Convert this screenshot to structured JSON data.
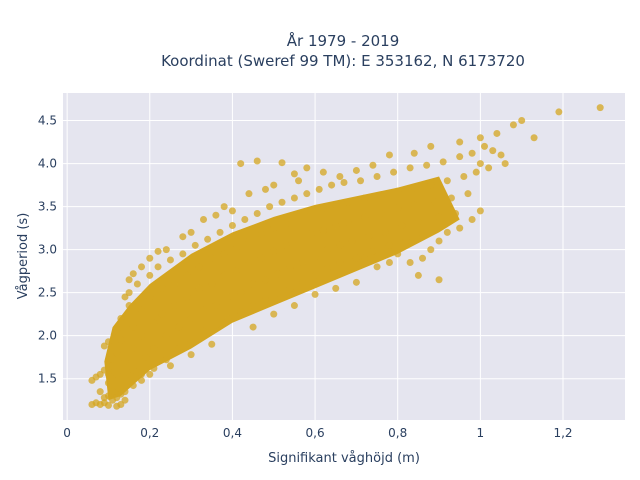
{
  "chart_data": {
    "type": "scatter",
    "title_lines": [
      "År 1979 - 2019",
      "Koordinat (Sweref 99 TM): E 353162, N 6173720"
    ],
    "xlabel": "Signifikant våghöjd (m)",
    "ylabel": "Vågperiod (s)",
    "xlim": [
      -0.01,
      1.35
    ],
    "ylim": [
      1.02,
      4.82
    ],
    "xticks": [
      0,
      0.2,
      0.4,
      0.6,
      0.8,
      1,
      1.2
    ],
    "xtick_labels": [
      "0",
      "0,2",
      "0,4",
      "0,6",
      "0,8",
      "1",
      "1,2"
    ],
    "yticks": [
      1.5,
      2.0,
      2.5,
      3.0,
      3.5,
      4.0,
      4.5
    ],
    "ytick_labels": [
      "1.5",
      "2.0",
      "2.5",
      "3.0",
      "3.5",
      "4.0",
      "4.5"
    ],
    "grid": true,
    "marker_color": "#d4a520",
    "plot_bgcolor": "#e5e5ef",
    "points": [
      [
        0.06,
        1.2
      ],
      [
        0.07,
        1.22
      ],
      [
        0.08,
        1.2
      ],
      [
        0.09,
        1.22
      ],
      [
        0.1,
        1.19
      ],
      [
        0.12,
        1.18
      ],
      [
        0.13,
        1.2
      ],
      [
        0.07,
        1.52
      ],
      [
        0.08,
        1.55
      ],
      [
        0.06,
        1.48
      ],
      [
        0.09,
        1.88
      ],
      [
        0.1,
        1.93
      ],
      [
        0.1,
        1.72
      ],
      [
        0.11,
        1.65
      ],
      [
        0.1,
        1.45
      ],
      [
        0.11,
        1.35
      ],
      [
        0.12,
        1.28
      ],
      [
        0.12,
        1.55
      ],
      [
        0.12,
        1.8
      ],
      [
        0.12,
        2.05
      ],
      [
        0.13,
        2.2
      ],
      [
        0.13,
        1.95
      ],
      [
        0.14,
        1.7
      ],
      [
        0.14,
        1.5
      ],
      [
        0.14,
        1.35
      ],
      [
        0.15,
        2.35
      ],
      [
        0.15,
        2.5
      ],
      [
        0.14,
        2.45
      ],
      [
        0.16,
        2.1
      ],
      [
        0.16,
        1.85
      ],
      [
        0.16,
        1.6
      ],
      [
        0.17,
        2.6
      ],
      [
        0.18,
        2.3
      ],
      [
        0.18,
        2.0
      ],
      [
        0.19,
        1.75
      ],
      [
        0.18,
        1.55
      ],
      [
        0.2,
        2.7
      ],
      [
        0.2,
        2.45
      ],
      [
        0.21,
        2.15
      ],
      [
        0.21,
        1.85
      ],
      [
        0.21,
        1.62
      ],
      [
        0.22,
        2.8
      ],
      [
        0.23,
        2.55
      ],
      [
        0.23,
        2.25
      ],
      [
        0.24,
        2.0
      ],
      [
        0.24,
        1.72
      ],
      [
        0.25,
        2.88
      ],
      [
        0.26,
        2.6
      ],
      [
        0.26,
        2.35
      ],
      [
        0.27,
        2.1
      ],
      [
        0.27,
        1.85
      ],
      [
        0.28,
        2.95
      ],
      [
        0.29,
        2.7
      ],
      [
        0.29,
        2.45
      ],
      [
        0.3,
        2.2
      ],
      [
        0.3,
        1.92
      ],
      [
        0.31,
        3.05
      ],
      [
        0.32,
        2.8
      ],
      [
        0.32,
        2.55
      ],
      [
        0.33,
        2.3
      ],
      [
        0.33,
        2.05
      ],
      [
        0.34,
        3.12
      ],
      [
        0.35,
        2.9
      ],
      [
        0.35,
        2.6
      ],
      [
        0.36,
        2.35
      ],
      [
        0.36,
        2.12
      ],
      [
        0.37,
        3.2
      ],
      [
        0.38,
        2.95
      ],
      [
        0.38,
        2.7
      ],
      [
        0.39,
        2.45
      ],
      [
        0.39,
        2.2
      ],
      [
        0.4,
        3.28
      ],
      [
        0.41,
        3.02
      ],
      [
        0.41,
        2.75
      ],
      [
        0.42,
        2.5
      ],
      [
        0.42,
        2.28
      ],
      [
        0.43,
        3.35
      ],
      [
        0.44,
        3.1
      ],
      [
        0.44,
        2.85
      ],
      [
        0.45,
        2.6
      ],
      [
        0.45,
        2.35
      ],
      [
        0.46,
        3.42
      ],
      [
        0.47,
        3.18
      ],
      [
        0.47,
        2.9
      ],
      [
        0.48,
        2.65
      ],
      [
        0.48,
        2.42
      ],
      [
        0.49,
        3.5
      ],
      [
        0.5,
        3.25
      ],
      [
        0.5,
        2.98
      ],
      [
        0.51,
        2.72
      ],
      [
        0.51,
        2.5
      ],
      [
        0.52,
        3.55
      ],
      [
        0.53,
        3.3
      ],
      [
        0.53,
        3.05
      ],
      [
        0.54,
        2.8
      ],
      [
        0.54,
        2.55
      ],
      [
        0.55,
        3.6
      ],
      [
        0.56,
        3.38
      ],
      [
        0.56,
        3.1
      ],
      [
        0.57,
        2.85
      ],
      [
        0.57,
        2.62
      ],
      [
        0.58,
        3.65
      ],
      [
        0.59,
        3.42
      ],
      [
        0.59,
        3.18
      ],
      [
        0.6,
        2.92
      ],
      [
        0.6,
        2.7
      ],
      [
        0.61,
        3.7
      ],
      [
        0.62,
        3.48
      ],
      [
        0.62,
        3.22
      ],
      [
        0.63,
        3.0
      ],
      [
        0.63,
        2.78
      ],
      [
        0.64,
        3.75
      ],
      [
        0.65,
        3.52
      ],
      [
        0.65,
        3.28
      ],
      [
        0.66,
        3.05
      ],
      [
        0.66,
        2.85
      ],
      [
        0.67,
        3.78
      ],
      [
        0.68,
        3.55
      ],
      [
        0.68,
        3.32
      ],
      [
        0.69,
        3.1
      ],
      [
        0.7,
        2.9
      ],
      [
        0.71,
        3.8
      ],
      [
        0.72,
        3.6
      ],
      [
        0.72,
        3.38
      ],
      [
        0.73,
        3.15
      ],
      [
        0.74,
        2.98
      ],
      [
        0.75,
        3.85
      ],
      [
        0.76,
        3.62
      ],
      [
        0.76,
        3.42
      ],
      [
        0.77,
        3.2
      ],
      [
        0.78,
        3.05
      ],
      [
        0.79,
        3.9
      ],
      [
        0.8,
        3.68
      ],
      [
        0.8,
        3.48
      ],
      [
        0.81,
        3.28
      ],
      [
        0.82,
        3.1
      ],
      [
        0.83,
        3.95
      ],
      [
        0.84,
        3.72
      ],
      [
        0.84,
        3.52
      ],
      [
        0.85,
        3.32
      ],
      [
        0.86,
        3.15
      ],
      [
        0.87,
        3.98
      ],
      [
        0.88,
        3.75
      ],
      [
        0.89,
        3.55
      ],
      [
        0.9,
        3.38
      ],
      [
        0.91,
        4.02
      ],
      [
        0.92,
        3.8
      ],
      [
        0.93,
        3.6
      ],
      [
        0.94,
        3.42
      ],
      [
        0.95,
        4.08
      ],
      [
        0.96,
        3.85
      ],
      [
        0.97,
        3.65
      ],
      [
        0.98,
        4.12
      ],
      [
        0.99,
        3.9
      ],
      [
        1.0,
        4.0
      ],
      [
        1.01,
        4.2
      ],
      [
        1.02,
        3.95
      ],
      [
        1.03,
        4.15
      ],
      [
        1.04,
        4.35
      ],
      [
        1.05,
        4.1
      ],
      [
        1.06,
        4.0
      ],
      [
        1.08,
        4.45
      ],
      [
        1.1,
        4.5
      ],
      [
        1.13,
        4.3
      ],
      [
        1.19,
        4.6
      ],
      [
        1.29,
        4.65
      ],
      [
        0.42,
        4.0
      ],
      [
        0.46,
        4.03
      ],
      [
        0.52,
        4.01
      ],
      [
        0.58,
        3.95
      ],
      [
        0.55,
        3.88
      ],
      [
        0.62,
        3.9
      ],
      [
        0.66,
        3.85
      ],
      [
        0.7,
        3.92
      ],
      [
        0.74,
        3.98
      ],
      [
        0.78,
        4.1
      ],
      [
        0.84,
        4.12
      ],
      [
        0.88,
        4.2
      ],
      [
        0.95,
        4.25
      ],
      [
        1.0,
        4.3
      ],
      [
        0.28,
        3.15
      ],
      [
        0.3,
        3.2
      ],
      [
        0.33,
        3.35
      ],
      [
        0.36,
        3.4
      ],
      [
        0.38,
        3.5
      ],
      [
        0.4,
        3.45
      ],
      [
        0.44,
        3.65
      ],
      [
        0.48,
        3.7
      ],
      [
        0.5,
        3.75
      ],
      [
        0.56,
        3.8
      ],
      [
        0.2,
        2.9
      ],
      [
        0.22,
        2.98
      ],
      [
        0.24,
        3.0
      ],
      [
        0.18,
        2.8
      ],
      [
        0.16,
        2.72
      ],
      [
        0.15,
        2.65
      ],
      [
        0.72,
        2.9
      ],
      [
        0.75,
        2.8
      ],
      [
        0.78,
        2.85
      ],
      [
        0.8,
        2.95
      ],
      [
        0.83,
        2.85
      ],
      [
        0.86,
        2.9
      ],
      [
        0.88,
        3.0
      ],
      [
        0.9,
        3.1
      ],
      [
        0.92,
        3.2
      ],
      [
        0.95,
        3.25
      ],
      [
        0.98,
        3.35
      ],
      [
        1.0,
        3.45
      ],
      [
        0.85,
        2.7
      ],
      [
        0.9,
        2.65
      ],
      [
        0.45,
        2.1
      ],
      [
        0.5,
        2.25
      ],
      [
        0.55,
        2.35
      ],
      [
        0.6,
        2.48
      ],
      [
        0.65,
        2.55
      ],
      [
        0.7,
        2.62
      ],
      [
        0.35,
        1.9
      ],
      [
        0.3,
        1.78
      ],
      [
        0.25,
        1.65
      ],
      [
        0.2,
        1.55
      ],
      [
        0.18,
        1.48
      ],
      [
        0.16,
        1.42
      ],
      [
        0.14,
        1.25
      ],
      [
        0.13,
        1.32
      ],
      [
        0.11,
        1.25
      ],
      [
        0.1,
        1.3
      ],
      [
        0.09,
        1.28
      ],
      [
        0.08,
        1.35
      ],
      [
        0.09,
        1.6
      ],
      [
        0.1,
        1.55
      ]
    ]
  }
}
